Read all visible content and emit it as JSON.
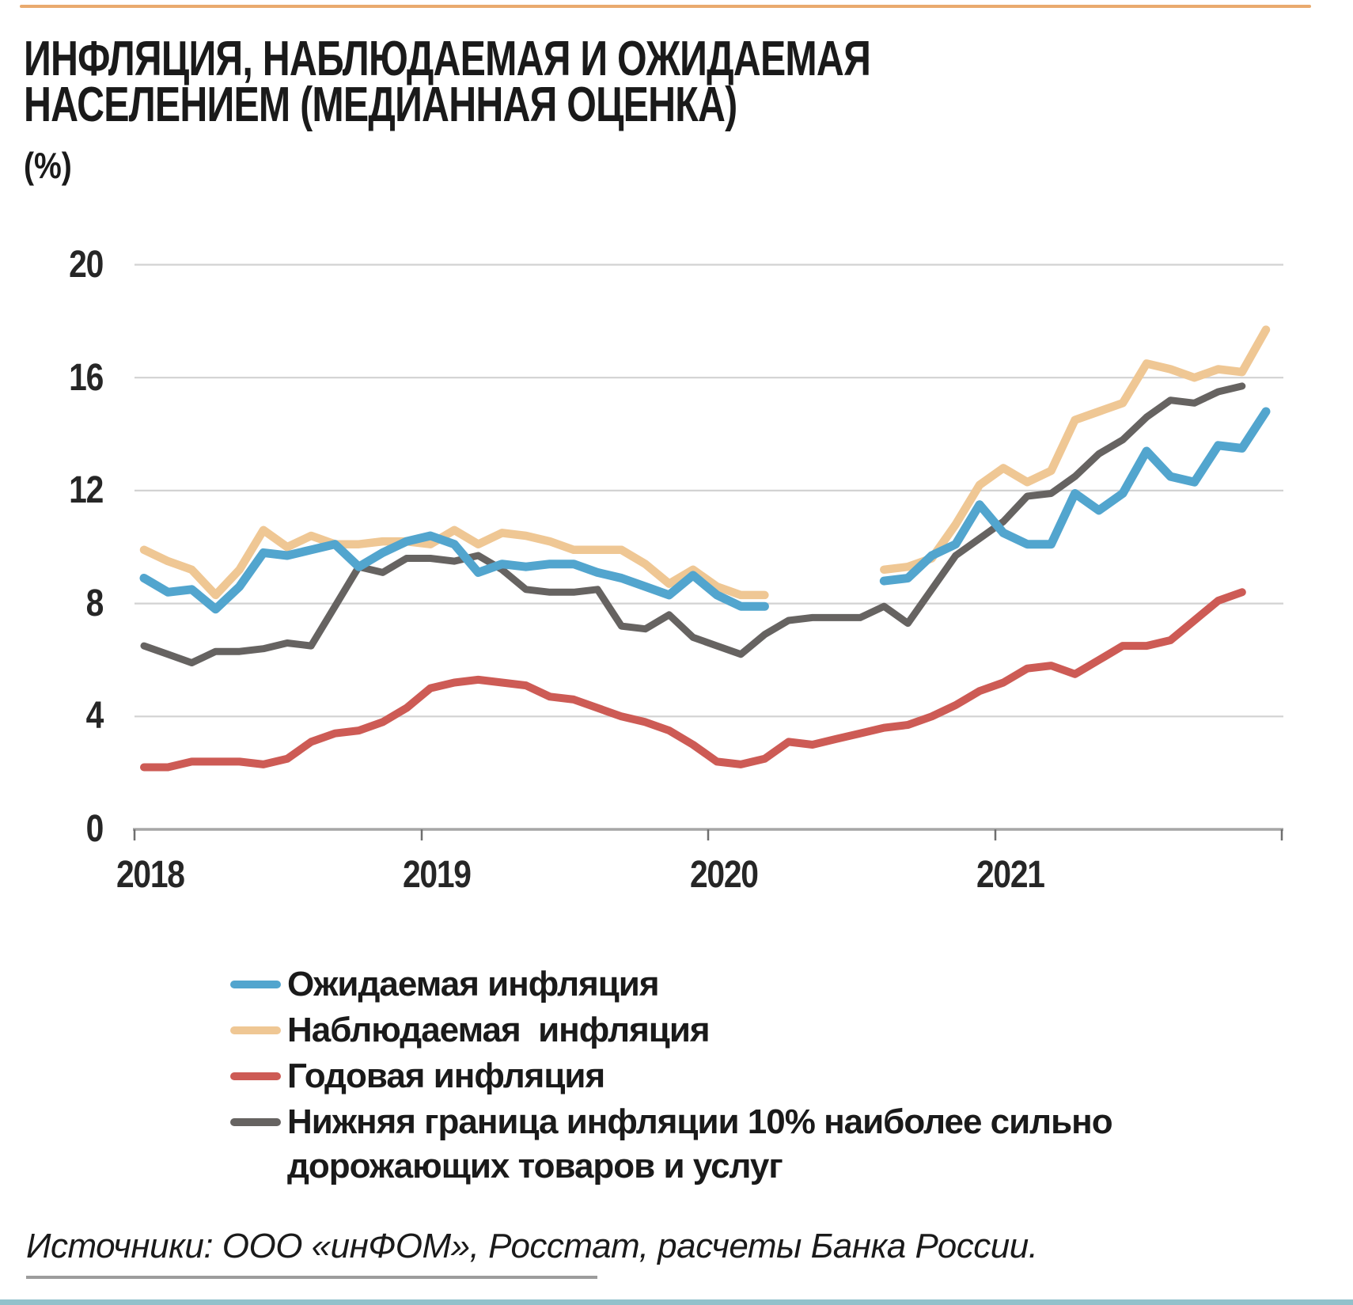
{
  "header": {
    "title_line1": "ИНФЛЯЦИЯ, НАБЛЮДАЕМАЯ И ОЖИДАЕМАЯ",
    "title_line2": "НАСЕЛЕНИЕМ (МЕДИАННАЯ ОЦЕНКА)",
    "unit_label": "(%)"
  },
  "footer": {
    "source_text": "Источники: ООО «инФОМ», Росстат, расчеты Банка России.",
    "accent_rule_top_color": "#E9AA6E",
    "accent_rule_bottom_color": "#92C1CB"
  },
  "chart_data": {
    "type": "line",
    "title": "ИНФЛЯЦИЯ, НАБЛЮДАЕМАЯ И ОЖИДАЕМАЯ НАСЕЛЕНИЕМ (МЕДИАННАЯ ОЦЕНКА)",
    "unit": "%",
    "x_axis": "monthly, Jan 2018 – Dec 2021 (48 points)",
    "x_year_labels": [
      "2018",
      "2019",
      "2020",
      "2021"
    ],
    "y_ticks_top_to_bottom": [
      20,
      16,
      12,
      8,
      4,
      0
    ],
    "ylim": [
      0,
      20
    ],
    "grid": "horizontal gridlines at each y tick",
    "legend_position": "below chart",
    "note": "Survey series (ожидаемая, наблюдаемая) have a gap Apr–Jul 2020; годовая инфляция and нижняя граница series end in Nov 2021",
    "series": [
      {
        "name": "Ожидаемая инфляция",
        "color": "#52A5CE",
        "values": [
          8.9,
          8.4,
          8.5,
          7.8,
          8.6,
          9.8,
          9.7,
          9.9,
          10.1,
          9.3,
          9.8,
          10.2,
          10.4,
          10.1,
          9.1,
          9.4,
          9.3,
          9.4,
          9.4,
          9.1,
          8.9,
          8.6,
          8.3,
          9.0,
          8.3,
          7.9,
          7.9,
          null,
          null,
          null,
          null,
          8.8,
          8.9,
          9.7,
          10.1,
          11.5,
          10.5,
          10.1,
          10.1,
          11.9,
          11.3,
          11.9,
          13.4,
          12.5,
          12.3,
          13.6,
          13.5,
          14.8
        ]
      },
      {
        "name": "Наблюдаемая  инфляция",
        "color": "#EFC794",
        "values": [
          9.9,
          9.5,
          9.2,
          8.3,
          9.2,
          10.6,
          10.0,
          10.4,
          10.1,
          10.1,
          10.2,
          10.2,
          10.1,
          10.6,
          10.1,
          10.5,
          10.4,
          10.2,
          9.9,
          9.9,
          9.9,
          9.4,
          8.7,
          9.2,
          8.6,
          8.3,
          8.3,
          null,
          null,
          null,
          null,
          9.2,
          9.3,
          9.6,
          10.8,
          12.2,
          12.8,
          12.3,
          12.7,
          14.5,
          14.8,
          15.1,
          16.5,
          16.3,
          16.0,
          16.3,
          16.2,
          17.7
        ]
      },
      {
        "name": "Годовая инфляция",
        "color": "#CD5B55",
        "values": [
          2.2,
          2.2,
          2.4,
          2.4,
          2.4,
          2.3,
          2.5,
          3.1,
          3.4,
          3.5,
          3.8,
          4.3,
          5.0,
          5.2,
          5.3,
          5.2,
          5.1,
          4.7,
          4.6,
          4.3,
          4.0,
          3.8,
          3.5,
          3.0,
          2.4,
          2.3,
          2.5,
          3.1,
          3.0,
          3.2,
          3.4,
          3.6,
          3.7,
          4.0,
          4.4,
          4.9,
          5.2,
          5.7,
          5.8,
          5.5,
          6.0,
          6.5,
          6.5,
          6.7,
          7.4,
          8.1,
          8.4,
          null
        ]
      },
      {
        "name": "Нижняя граница инфляции 10% наиболее сильно дорожающих товаров и услуг",
        "color": "#666361",
        "values": [
          6.5,
          6.2,
          5.9,
          6.3,
          6.3,
          6.4,
          6.6,
          6.5,
          7.9,
          9.3,
          9.1,
          9.6,
          9.6,
          9.5,
          9.7,
          9.2,
          8.5,
          8.4,
          8.4,
          8.5,
          7.2,
          7.1,
          7.6,
          6.8,
          6.5,
          6.2,
          6.9,
          7.4,
          7.5,
          7.5,
          7.5,
          7.9,
          7.3,
          8.5,
          9.7,
          10.3,
          10.9,
          11.8,
          11.9,
          12.5,
          13.3,
          13.8,
          14.6,
          15.2,
          15.1,
          15.5,
          15.7,
          null
        ]
      }
    ]
  }
}
